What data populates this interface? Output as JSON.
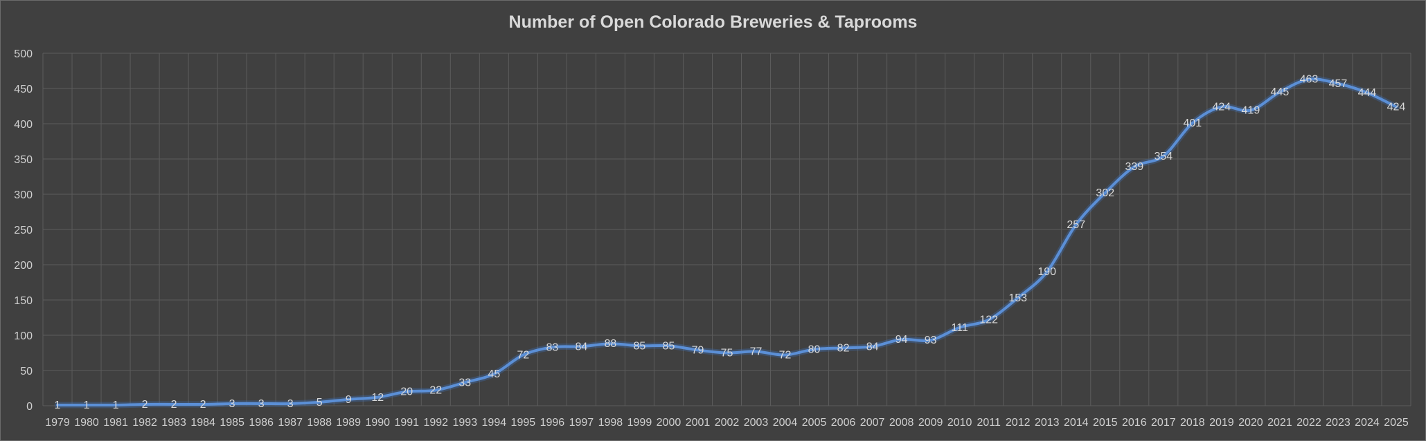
{
  "chart_data": {
    "type": "line",
    "title": "Number of Open Colorado Breweries & Taprooms",
    "xlabel": "",
    "ylabel": "",
    "ylim": [
      0,
      500
    ],
    "yticks": [
      0,
      50,
      100,
      150,
      200,
      250,
      300,
      350,
      400,
      450,
      500
    ],
    "grid": true,
    "legend": "none",
    "line_color": "#5b8fd6",
    "categories": [
      "1979",
      "1980",
      "1981",
      "1982",
      "1983",
      "1984",
      "1985",
      "1986",
      "1987",
      "1988",
      "1989",
      "1990",
      "1991",
      "1992",
      "1993",
      "1994",
      "1995",
      "1996",
      "1997",
      "1998",
      "1999",
      "2000",
      "2001",
      "2002",
      "2003",
      "2004",
      "2005",
      "2006",
      "2007",
      "2008",
      "2009",
      "2010",
      "2011",
      "2012",
      "2013",
      "2014",
      "2015",
      "2016",
      "2017",
      "2018",
      "2019",
      "2020",
      "2021",
      "2022",
      "2023",
      "2024",
      "2025"
    ],
    "values": [
      1,
      1,
      1,
      2,
      2,
      2,
      3,
      3,
      3,
      5,
      9,
      12,
      20,
      22,
      33,
      45,
      72,
      83,
      84,
      88,
      85,
      85,
      79,
      75,
      77,
      72,
      80,
      82,
      84,
      94,
      93,
      111,
      122,
      153,
      190,
      257,
      302,
      339,
      354,
      401,
      424,
      419,
      445,
      463,
      457,
      444,
      424
    ]
  }
}
